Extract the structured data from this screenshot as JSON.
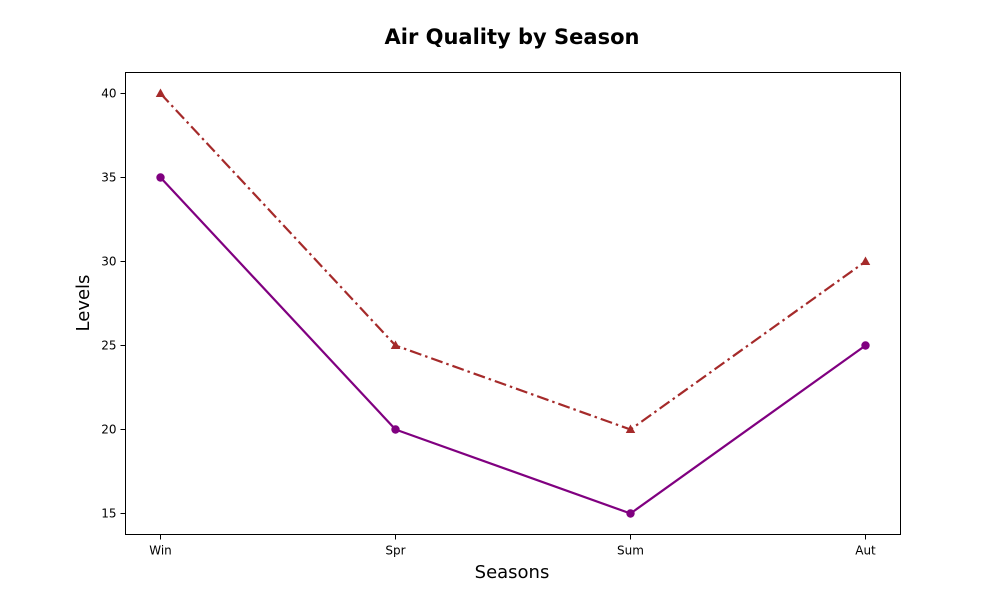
{
  "chart_data": {
    "type": "line",
    "title": "Air Quality by Season",
    "xlabel": "Seasons",
    "ylabel": "Levels",
    "categories": [
      "Win",
      "Spr",
      "Sum",
      "Aut"
    ],
    "ylim": [
      13.75,
      41.25
    ],
    "yticks": [
      15,
      20,
      25,
      30,
      35,
      40
    ],
    "grid": false,
    "series": [
      {
        "values": [
          35,
          20,
          15,
          25
        ],
        "color": "#800080",
        "line_style": "solid",
        "marker": "circle"
      },
      {
        "values": [
          40,
          25,
          20,
          30
        ],
        "color": "#a52a2a",
        "line_style": "dashdot",
        "marker": "triangle"
      }
    ]
  }
}
